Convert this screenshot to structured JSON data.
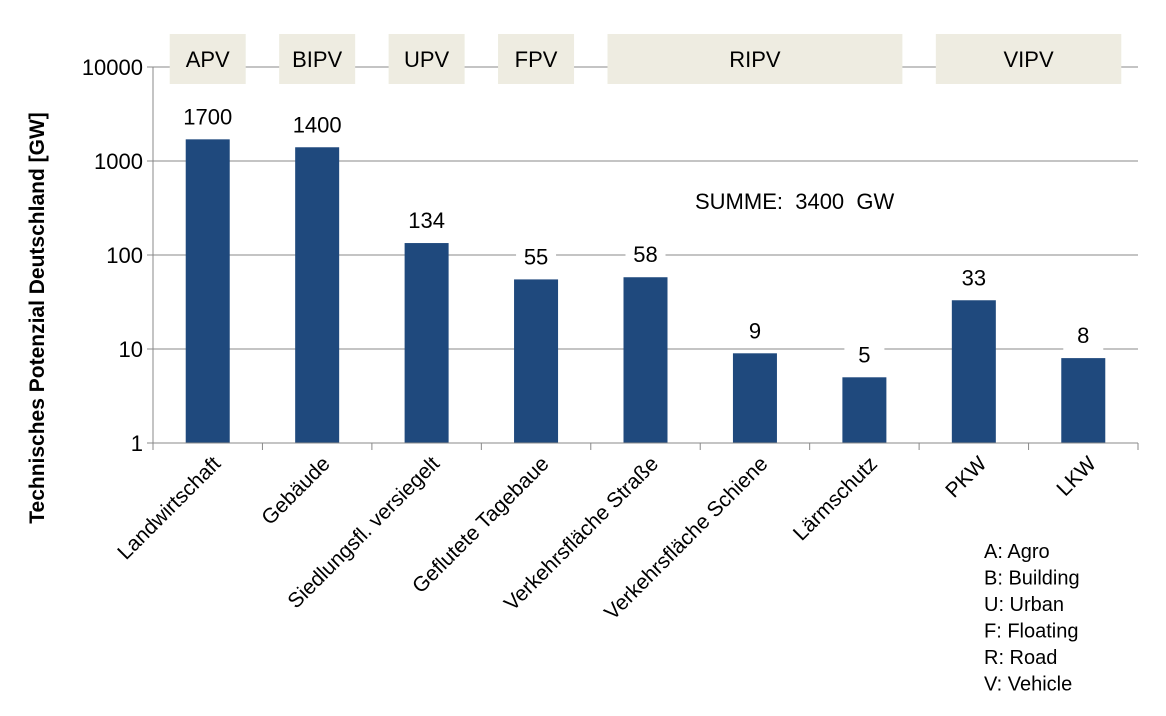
{
  "chart_data": {
    "type": "bar",
    "yscale": "log",
    "ylim": [
      1,
      10000
    ],
    "yticks": [
      "1",
      "10",
      "100",
      "1000",
      "10000"
    ],
    "ylabel": "Technisches Potenzial Deutschland [GW]",
    "categories": [
      "Landwirtschaft",
      "Gebäude",
      "Siedlungsfl. versiegelt",
      "Geflutete Tagebaue",
      "Verkehrsfläche Straße",
      "Verkehrsfläche Schiene",
      "Lärmschutz",
      "PKW",
      "LKW"
    ],
    "values": [
      1700,
      1400,
      134,
      55,
      58,
      9,
      5,
      33,
      8
    ],
    "value_labels": [
      "1700",
      "1400",
      "134",
      "55",
      "58",
      "9",
      "5",
      "33",
      "8"
    ],
    "bar_color": "#1f497d",
    "groups": [
      {
        "label": "APV",
        "from": 0,
        "to": 0
      },
      {
        "label": "BIPV",
        "from": 1,
        "to": 1
      },
      {
        "label": "UPV",
        "from": 2,
        "to": 2
      },
      {
        "label": "FPV",
        "from": 3,
        "to": 3
      },
      {
        "label": "RIPV",
        "from": 4,
        "to": 6
      },
      {
        "label": "VIPV",
        "from": 7,
        "to": 8
      }
    ],
    "group_box_color": "#eeece1",
    "annotation": "SUMME:  3400  GW",
    "legend": [
      "A: Agro",
      "B: Building",
      "U: Urban",
      "F: Floating",
      "R: Road",
      "V: Vehicle"
    ]
  }
}
